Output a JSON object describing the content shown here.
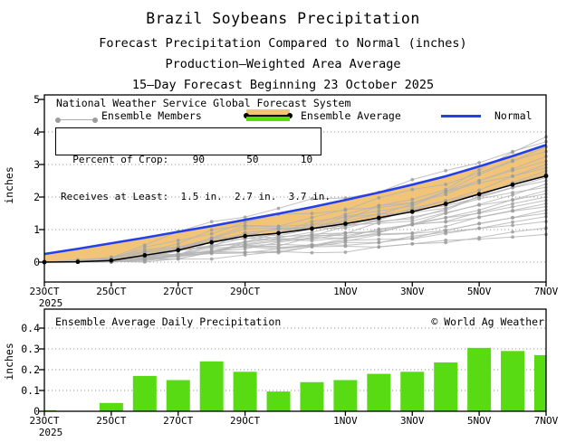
{
  "header": {
    "title": "Brazil Soybeans Precipitation",
    "subtitle1": "Forecast Precipitation Compared to Normal (inches)",
    "subtitle2": "Production—Weighted Area Average",
    "subtitle3": "15—Day Forecast Beginning 23 October 2025"
  },
  "top_chart": {
    "legend": {
      "system": "National Weather Service Global Forecast System",
      "members_label": "Ensemble Members",
      "average_label": "Ensemble Average",
      "normal_label": "Normal"
    },
    "crop_box_line1": "  Percent of Crop:    90       50       10",
    "crop_box_line2": "Receives at Least:  1.5 in.  2.7 in.  3.7 in.",
    "ylabel": "inches",
    "yticks": [
      "0",
      "1",
      "2",
      "3",
      "4",
      "5"
    ],
    "xticks": [
      "23OCT",
      "25OCT",
      "27OCT",
      "29OCT",
      "1NOV",
      "3NOV",
      "5NOV",
      "7NOV"
    ],
    "year": "2025"
  },
  "bottom_chart": {
    "title": "Ensemble Average Daily Precipitation",
    "credit": "© World Ag Weather",
    "ylabel": "inches",
    "yticks": [
      "0",
      "0.1",
      "0.2",
      "0.3",
      "0.4"
    ],
    "xticks": [
      "23OCT",
      "25OCT",
      "27OCT",
      "29OCT",
      "1NOV",
      "3NOV",
      "5NOV",
      "7NOV"
    ],
    "year": "2025"
  },
  "colors": {
    "normal_line": "#2440E8",
    "average_line": "#000000",
    "deficit_band": "#F2C478",
    "legend_surplus_green": "#55E000",
    "bar_green": "#58DB12",
    "member_line": "#B5B5B5",
    "member_dot": "#9C9C9C",
    "grid_dot": "#9A9A9A",
    "axis": "#000000"
  },
  "chart_data": [
    {
      "type": "line",
      "title": "Forecast cumulative precipitation compared to normal",
      "x_dates": [
        "23OCT",
        "24OCT",
        "25OCT",
        "26OCT",
        "27OCT",
        "28OCT",
        "29OCT",
        "30OCT",
        "31OCT",
        "1NOV",
        "2NOV",
        "3NOV",
        "4NOV",
        "5NOV",
        "6NOV",
        "7NOV"
      ],
      "xtick_day_indices": [
        0,
        2,
        4,
        6,
        9,
        11,
        13,
        15
      ],
      "ylim": [
        0,
        5.6
      ],
      "ylabel": "inches",
      "series": [
        {
          "name": "Normal",
          "values": [
            0.25,
            0.41,
            0.58,
            0.75,
            0.93,
            1.11,
            1.3,
            1.49,
            1.69,
            1.91,
            2.14,
            2.38,
            2.64,
            2.94,
            3.26,
            3.6
          ]
        },
        {
          "name": "Ensemble Average",
          "values": [
            0.0,
            0.01,
            0.05,
            0.21,
            0.37,
            0.61,
            0.8,
            0.89,
            1.03,
            1.18,
            1.36,
            1.55,
            1.79,
            2.09,
            2.38,
            2.65
          ]
        }
      ],
      "ensemble_members": {
        "final_values": [
          0.85,
          1.05,
          1.25,
          1.4,
          1.5,
          1.6,
          1.7,
          1.8,
          1.9,
          2.0,
          2.1,
          2.2,
          2.3,
          2.4,
          2.5,
          2.6,
          2.7,
          2.8,
          2.9,
          3.0,
          3.1,
          3.25,
          3.4,
          3.55,
          3.7,
          3.85
        ],
        "shape_exponents": [
          0.75,
          1.3,
          0.9,
          1.15,
          1.0,
          1.35,
          0.8,
          1.2,
          0.95,
          1.1,
          0.85,
          1.25
        ],
        "wiggle_amplitude": 0.09
      },
      "percent_of_crop": {
        "percents": [
          90,
          50,
          10
        ],
        "receives_at_least_in": [
          1.5,
          2.7,
          3.7
        ]
      }
    },
    {
      "type": "bar",
      "title": "Ensemble Average Daily Precipitation",
      "categories": [
        "23OCT",
        "24OCT",
        "25OCT",
        "26OCT",
        "27OCT",
        "28OCT",
        "29OCT",
        "30OCT",
        "31OCT",
        "1NOV",
        "2NOV",
        "3NOV",
        "4NOV",
        "5NOV",
        "6NOV",
        "7NOV"
      ],
      "values": [
        0.005,
        0.0,
        0.04,
        0.17,
        0.15,
        0.24,
        0.19,
        0.095,
        0.14,
        0.15,
        0.18,
        0.19,
        0.235,
        0.305,
        0.29,
        0.27
      ],
      "xtick_day_indices": [
        0,
        2,
        4,
        6,
        9,
        11,
        13,
        15
      ],
      "ylim": [
        0,
        0.49
      ],
      "ylabel": "inches"
    }
  ]
}
